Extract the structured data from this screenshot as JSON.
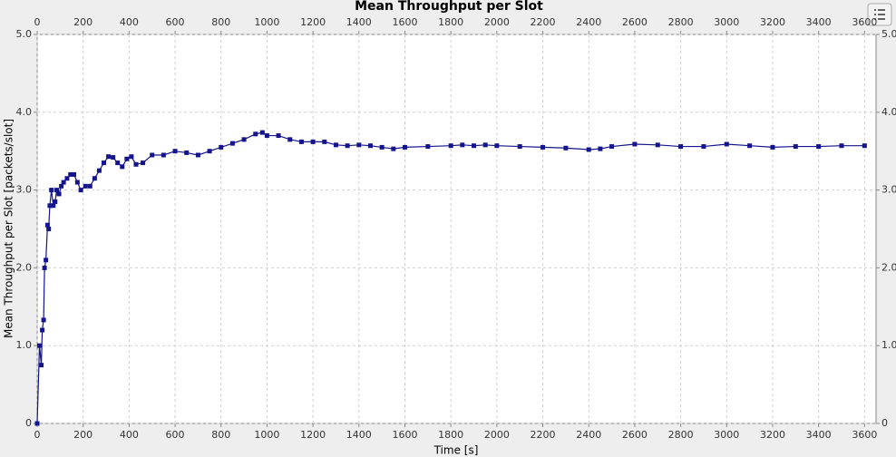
{
  "chart_data": {
    "type": "line",
    "title": "Mean Throughput per Slot",
    "x_label": "Time [s]",
    "y_label": "Mean Throughput per Slot [packets/slot]",
    "xlim": [
      0,
      3650
    ],
    "ylim": [
      0,
      5
    ],
    "xticks": [
      0,
      200,
      400,
      600,
      800,
      1000,
      1200,
      1400,
      1600,
      1800,
      2000,
      2200,
      2400,
      2600,
      2800,
      3000,
      3200,
      3400,
      3600
    ],
    "yticks": [
      0,
      {
        "value": 1,
        "label": "1.0"
      },
      {
        "value": 2,
        "label": "2.0"
      },
      {
        "value": 3,
        "label": "3.0"
      },
      {
        "value": 4,
        "label": "4.0"
      },
      {
        "value": 5,
        "label": "5.0"
      }
    ],
    "grid": true,
    "color": "#14148c",
    "x": [
      0,
      10,
      18,
      22,
      28,
      32,
      38,
      45,
      50,
      55,
      62,
      70,
      78,
      85,
      95,
      105,
      115,
      130,
      145,
      160,
      175,
      190,
      210,
      230,
      250,
      270,
      290,
      310,
      330,
      350,
      370,
      390,
      410,
      430,
      460,
      500,
      550,
      600,
      650,
      700,
      750,
      800,
      850,
      900,
      950,
      980,
      1000,
      1050,
      1100,
      1150,
      1200,
      1250,
      1300,
      1350,
      1400,
      1450,
      1500,
      1550,
      1600,
      1700,
      1800,
      1850,
      1900,
      1950,
      2000,
      2100,
      2200,
      2300,
      2400,
      2450,
      2500,
      2600,
      2700,
      2800,
      2900,
      3000,
      3100,
      3200,
      3300,
      3400,
      3500,
      3600
    ],
    "values": [
      0,
      1.0,
      0.75,
      1.2,
      1.33,
      2.0,
      2.1,
      2.55,
      2.5,
      2.8,
      3.0,
      2.8,
      2.85,
      3.0,
      2.95,
      3.05,
      3.1,
      3.15,
      3.2,
      3.2,
      3.1,
      3.0,
      3.05,
      3.05,
      3.15,
      3.25,
      3.35,
      3.43,
      3.42,
      3.35,
      3.3,
      3.4,
      3.43,
      3.33,
      3.35,
      3.45,
      3.45,
      3.5,
      3.48,
      3.45,
      3.5,
      3.55,
      3.6,
      3.65,
      3.72,
      3.74,
      3.7,
      3.7,
      3.65,
      3.62,
      3.62,
      3.62,
      3.58,
      3.57,
      3.58,
      3.57,
      3.55,
      3.53,
      3.55,
      3.56,
      3.57,
      3.58,
      3.57,
      3.58,
      3.57,
      3.56,
      3.55,
      3.54,
      3.52,
      3.53,
      3.56,
      3.59,
      3.58,
      3.56,
      3.56,
      3.59,
      3.57,
      3.55,
      3.56,
      3.56,
      3.57,
      3.57
    ]
  }
}
